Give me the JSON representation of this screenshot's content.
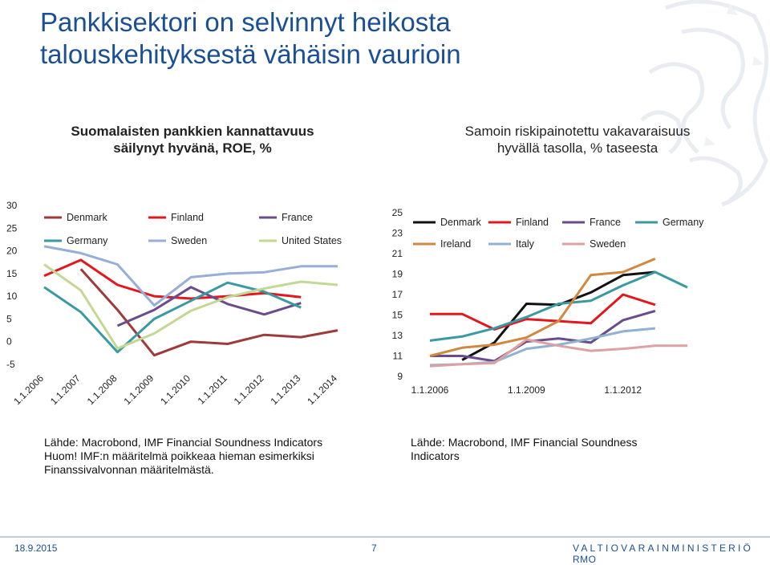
{
  "slide": {
    "title_line1": "Pankkisektori on selvinnyt heikosta",
    "title_line2": "talouskehityksestä vähäisin vaurioin"
  },
  "left_panel": {
    "title_line1": "Suomalaisten pankkien kannattavuus",
    "title_line2": "säilynyt hyvänä, ROE, %",
    "note_line1": "Lähde: Macrobond, IMF Financial Soundness Indicators",
    "note_line2": "Huom! IMF:n määritelmä poikkeaa hieman esimerkiksi",
    "note_line3": "Finanssivalvonnan määritelmästä."
  },
  "right_panel": {
    "title_line1": "Samoin riskipainotettu vakavaraisuus",
    "title_line2": "hyvällä tasolla, % taseesta",
    "note_line1": "Lähde: Macrobond, IMF Financial Soundness",
    "note_line2": "Indicators"
  },
  "footer": {
    "date": "18.9.2015",
    "page": "7",
    "org": "VALTIOVARAINMINISTERIÖ",
    "org_suffix": "RMO"
  },
  "colors": {
    "title": "#1a4f96",
    "Denmark": "#9e3a3a",
    "Finland": "#e3171e",
    "France": "#6a4c8c",
    "Germany": "#3a9aa2",
    "Sweden": "#96aed8",
    "United States": "#c3d893",
    "Ireland": "#d2873e",
    "Italy": "#8fb1d4",
    "Sweden_right": "#dda1a3",
    "Denmark_right": "#111111"
  },
  "chart_data": [
    {
      "type": "line",
      "title": "",
      "xlabel": "",
      "ylabel": "",
      "x": [
        "1.1.2006",
        "1.1.2007",
        "1.1.2008",
        "1.1.2009",
        "1.1.2010",
        "1.1.2011",
        "1.1.2012",
        "1.1.2013",
        "1.1.2014"
      ],
      "ylim": [
        -5,
        30
      ],
      "yticks": [
        -5,
        0,
        5,
        10,
        15,
        20,
        25,
        30
      ],
      "legend": "top",
      "series": [
        {
          "name": "Denmark",
          "color": "#9e3a3a",
          "points": [
            [
              2007.0,
              16
            ],
            [
              2008.0,
              7
            ],
            [
              2009.0,
              -3
            ],
            [
              2010.0,
              0
            ],
            [
              2011.0,
              -0.5
            ],
            [
              2012.0,
              1.5
            ],
            [
              2013.0,
              1
            ],
            [
              2014.0,
              2.5
            ]
          ]
        },
        {
          "name": "Finland",
          "color": "#e3171e",
          "points": [
            [
              2006.0,
              14.5
            ],
            [
              2007.0,
              18
            ],
            [
              2008.0,
              12.5
            ],
            [
              2009.0,
              10
            ],
            [
              2010.0,
              9.5
            ],
            [
              2011.0,
              10
            ],
            [
              2012.0,
              10.7
            ],
            [
              2013.0,
              9.8
            ]
          ]
        },
        {
          "name": "France",
          "color": "#6a4c8c",
          "points": [
            [
              2008.0,
              3.5
            ],
            [
              2009.0,
              7
            ],
            [
              2010.0,
              12
            ],
            [
              2011.0,
              8.3
            ],
            [
              2012.0,
              6
            ],
            [
              2013.0,
              8.5
            ]
          ]
        },
        {
          "name": "Germany",
          "color": "#3a9aa2",
          "points": [
            [
              2006.0,
              12
            ],
            [
              2007.0,
              6.5
            ],
            [
              2008.0,
              -2.3
            ],
            [
              2009.0,
              5
            ],
            [
              2010.0,
              9
            ],
            [
              2011.0,
              13
            ],
            [
              2012.0,
              11
            ],
            [
              2013.0,
              7.5
            ]
          ]
        },
        {
          "name": "Sweden",
          "color": "#96aed8",
          "points": [
            [
              2006.0,
              21
            ],
            [
              2007.0,
              19.5
            ],
            [
              2008.0,
              17
            ],
            [
              2009.0,
              8
            ],
            [
              2010.0,
              14.2
            ],
            [
              2011.0,
              15
            ],
            [
              2012.0,
              15.3
            ],
            [
              2013.0,
              16.6
            ],
            [
              2014.0,
              16.6
            ]
          ]
        },
        {
          "name": "United States",
          "color": "#c3d893",
          "points": [
            [
              2006.0,
              17
            ],
            [
              2007.0,
              11.3
            ],
            [
              2008.0,
              -1.5
            ],
            [
              2009.0,
              1.8
            ],
            [
              2010.0,
              6.8
            ],
            [
              2011.0,
              9.8
            ],
            [
              2012.0,
              11.7
            ],
            [
              2013.0,
              13.2
            ],
            [
              2014.0,
              12.5
            ]
          ]
        }
      ]
    },
    {
      "type": "line",
      "title": "",
      "xlabel": "",
      "ylabel": "",
      "xticks": [
        "1.1.2006",
        "1.1.2009",
        "1.1.2012"
      ],
      "ylim": [
        9,
        25
      ],
      "yticks": [
        9,
        11,
        13,
        15,
        17,
        19,
        21,
        23,
        25
      ],
      "legend": "top",
      "series": [
        {
          "name": "Denmark",
          "color": "#111111",
          "points": [
            [
              2007.0,
              10.6
            ],
            [
              2008.0,
              12.3
            ],
            [
              2009.0,
              16.1
            ],
            [
              2010.0,
              16.0
            ],
            [
              2011.0,
              17.2
            ],
            [
              2012.0,
              18.9
            ],
            [
              2013.0,
              19.2
            ]
          ]
        },
        {
          "name": "Finland",
          "color": "#e3171e",
          "points": [
            [
              2006.0,
              15.1
            ],
            [
              2007.0,
              15.1
            ],
            [
              2008.0,
              13.6
            ],
            [
              2009.0,
              14.6
            ],
            [
              2010.0,
              14.4
            ],
            [
              2011.0,
              14.2
            ],
            [
              2012.0,
              17.0
            ],
            [
              2013.0,
              16.0
            ]
          ]
        },
        {
          "name": "France",
          "color": "#6a4c8c",
          "points": [
            [
              2006.0,
              11.0
            ],
            [
              2007.0,
              11.0
            ],
            [
              2008.0,
              10.5
            ],
            [
              2009.0,
              12.4
            ],
            [
              2010.0,
              12.7
            ],
            [
              2011.0,
              12.3
            ],
            [
              2012.0,
              14.5
            ],
            [
              2013.0,
              15.4
            ]
          ]
        },
        {
          "name": "Germany",
          "color": "#3a9aa2",
          "points": [
            [
              2006.0,
              12.5
            ],
            [
              2007.0,
              12.9
            ],
            [
              2008.0,
              13.7
            ],
            [
              2009.0,
              14.8
            ],
            [
              2010.0,
              16.1
            ],
            [
              2011.0,
              16.4
            ],
            [
              2012.0,
              17.9
            ],
            [
              2013.0,
              19.2
            ],
            [
              2014.0,
              17.7
            ]
          ]
        },
        {
          "name": "Ireland",
          "color": "#d2873e",
          "points": [
            [
              2006.0,
              11.0
            ],
            [
              2007.0,
              11.8
            ],
            [
              2008.0,
              12.1
            ],
            [
              2009.0,
              12.8
            ],
            [
              2010.0,
              14.4
            ],
            [
              2011.0,
              18.9
            ],
            [
              2012.0,
              19.2
            ],
            [
              2013.0,
              20.5
            ]
          ]
        },
        {
          "name": "Italy",
          "color": "#8fb1d4",
          "points": [
            [
              2006.0,
              10.1
            ],
            [
              2007.0,
              10.2
            ],
            [
              2008.0,
              10.4
            ],
            [
              2009.0,
              11.7
            ],
            [
              2010.0,
              12.1
            ],
            [
              2011.0,
              12.7
            ],
            [
              2012.0,
              13.4
            ],
            [
              2013.0,
              13.7
            ]
          ]
        },
        {
          "name": "Sweden",
          "color": "#dda1a3",
          "points": [
            [
              2006.0,
              10.0
            ],
            [
              2007.0,
              10.2
            ],
            [
              2008.0,
              10.3
            ],
            [
              2009.0,
              12.6
            ],
            [
              2010.0,
              12.0
            ],
            [
              2011.0,
              11.5
            ],
            [
              2012.0,
              11.7
            ],
            [
              2013.0,
              12.0
            ],
            [
              2014.0,
              12.0
            ]
          ]
        }
      ]
    }
  ]
}
